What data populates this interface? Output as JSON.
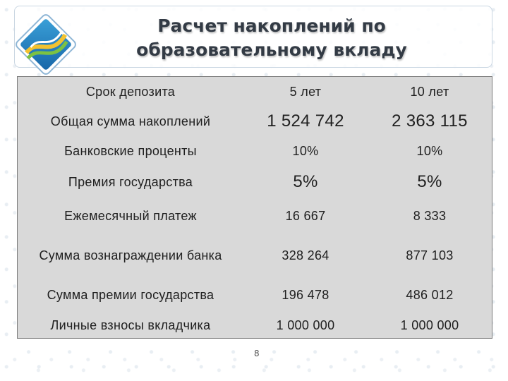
{
  "header": {
    "title_line1": "Расчет накоплений по",
    "title_line2": "образовательному вкладу",
    "logo_icon": "bank-logo-icon"
  },
  "table": {
    "rows": [
      {
        "label": "Срок депозита",
        "v5": "5 лет",
        "v10": "10 лет"
      },
      {
        "label": "Общая сумма накоплений",
        "v5": "1 524 742",
        "v10": "2 363 115"
      },
      {
        "label": "Банковские проценты",
        "v5": "10%",
        "v10": "10%"
      },
      {
        "label": "Премия государства",
        "v5": "5%",
        "v10": "5%"
      },
      {
        "label": "Ежемесячный платеж",
        "v5": "16 667",
        "v10": "8 333"
      },
      {
        "label": "Сумма вознаграждении банка",
        "v5": "328 264",
        "v10": "877 103"
      },
      {
        "label": "Сумма премии государства",
        "v5": "196 478",
        "v10": "486 012"
      },
      {
        "label": "Личные взносы вкладчика",
        "v5": "1 000 000",
        "v10": "1 000 000"
      }
    ]
  },
  "footer": {
    "page_number": "8"
  }
}
